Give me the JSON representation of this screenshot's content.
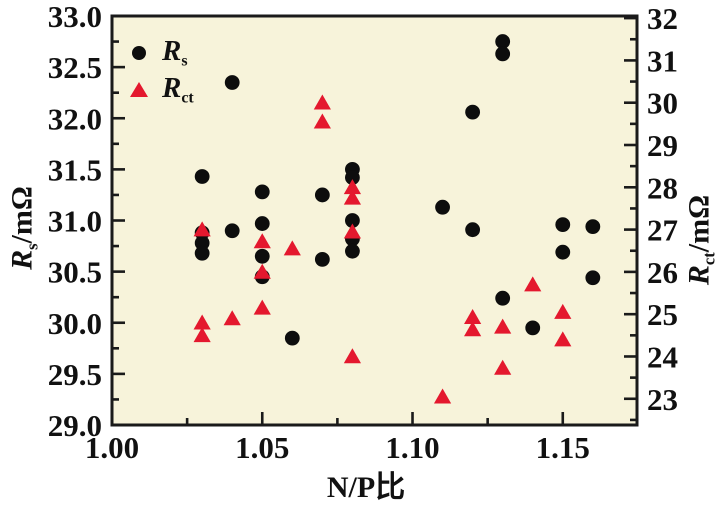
{
  "chart_data": {
    "type": "scatter",
    "title": "",
    "x_axis": {
      "label": "N/P比",
      "min": 1.0,
      "max": 1.1747,
      "tick_values": [
        1.0,
        1.05,
        1.1,
        1.15
      ],
      "tick_labels": [
        "1.00",
        "1.05",
        "1.10",
        "1.15"
      ],
      "minor_tick_values": [
        1.025,
        1.075,
        1.125
      ]
    },
    "left_axis": {
      "label": "Rs/mΩ",
      "label_pre": "R",
      "label_sub": "s",
      "label_post": "/mΩ",
      "min": 29.0,
      "max": 33.0,
      "tick_values": [
        33.0,
        32.5,
        32.0,
        31.5,
        31.0,
        30.5,
        30.0,
        29.5,
        29.0
      ],
      "tick_labels": [
        "33.0",
        "32.5",
        "32.0",
        "31.5",
        "31.0",
        "30.5",
        "30.0",
        "29.5",
        "29.0"
      ],
      "minor_step": 0.25
    },
    "right_axis": {
      "label": "Rct/mΩ",
      "label_pre": "R",
      "label_sub": "ct",
      "label_post": "/mΩ",
      "top_value": 32.05,
      "bottom_value": 22.38,
      "tick_values": [
        32,
        31,
        30,
        29,
        28,
        27,
        26,
        25,
        24,
        23
      ],
      "tick_labels": [
        "32",
        "31",
        "30",
        "29",
        "28",
        "27",
        "26",
        "25",
        "24",
        "23"
      ],
      "minor_step": 0.5
    },
    "series": [
      {
        "name": "Rs",
        "symbol": "circle",
        "color": "#0d0d0d",
        "axis": "left",
        "points": [
          [
            1.03,
            31.43
          ],
          [
            1.03,
            30.88
          ],
          [
            1.03,
            30.78
          ],
          [
            1.03,
            30.68
          ],
          [
            1.04,
            32.35
          ],
          [
            1.04,
            30.9
          ],
          [
            1.05,
            31.28
          ],
          [
            1.05,
            30.97
          ],
          [
            1.05,
            30.65
          ],
          [
            1.05,
            30.45
          ],
          [
            1.06,
            29.85
          ],
          [
            1.07,
            31.25
          ],
          [
            1.07,
            30.62
          ],
          [
            1.08,
            31.5
          ],
          [
            1.08,
            31.42
          ],
          [
            1.08,
            31.0
          ],
          [
            1.08,
            30.82
          ],
          [
            1.08,
            30.7
          ],
          [
            1.11,
            31.13
          ],
          [
            1.12,
            32.06
          ],
          [
            1.12,
            30.91
          ],
          [
            1.13,
            32.75
          ],
          [
            1.13,
            32.63
          ],
          [
            1.13,
            30.24
          ],
          [
            1.14,
            29.95
          ],
          [
            1.15,
            30.96
          ],
          [
            1.15,
            30.69
          ],
          [
            1.16,
            30.94
          ],
          [
            1.16,
            30.44
          ]
        ]
      },
      {
        "name": "Rct",
        "symbol": "triangle",
        "color": "#e4182e",
        "axis": "right",
        "points": [
          [
            1.03,
            27.0
          ],
          [
            1.03,
            24.8
          ],
          [
            1.03,
            24.5
          ],
          [
            1.04,
            24.9
          ],
          [
            1.05,
            26.72
          ],
          [
            1.05,
            26.0
          ],
          [
            1.05,
            25.15
          ],
          [
            1.06,
            26.55
          ],
          [
            1.07,
            30.0
          ],
          [
            1.07,
            29.55
          ],
          [
            1.08,
            28.0
          ],
          [
            1.08,
            27.75
          ],
          [
            1.08,
            26.95
          ],
          [
            1.08,
            24.0
          ],
          [
            1.11,
            23.05
          ],
          [
            1.12,
            24.93
          ],
          [
            1.12,
            24.64
          ],
          [
            1.13,
            24.7
          ],
          [
            1.13,
            23.73
          ],
          [
            1.14,
            25.7
          ],
          [
            1.15,
            25.05
          ],
          [
            1.15,
            24.4
          ]
        ]
      }
    ],
    "legend": {
      "items": [
        {
          "symbol": "circle",
          "color": "#0d0d0d",
          "label_pre": "R",
          "label_sub": "s"
        },
        {
          "symbol": "triangle",
          "color": "#e4182e",
          "label_pre": "R",
          "label_sub": "ct"
        }
      ],
      "position": "top-left"
    },
    "colors": {
      "plot_background": "#f7f3da",
      "frame": "#1a1a1a"
    },
    "grid": false
  }
}
